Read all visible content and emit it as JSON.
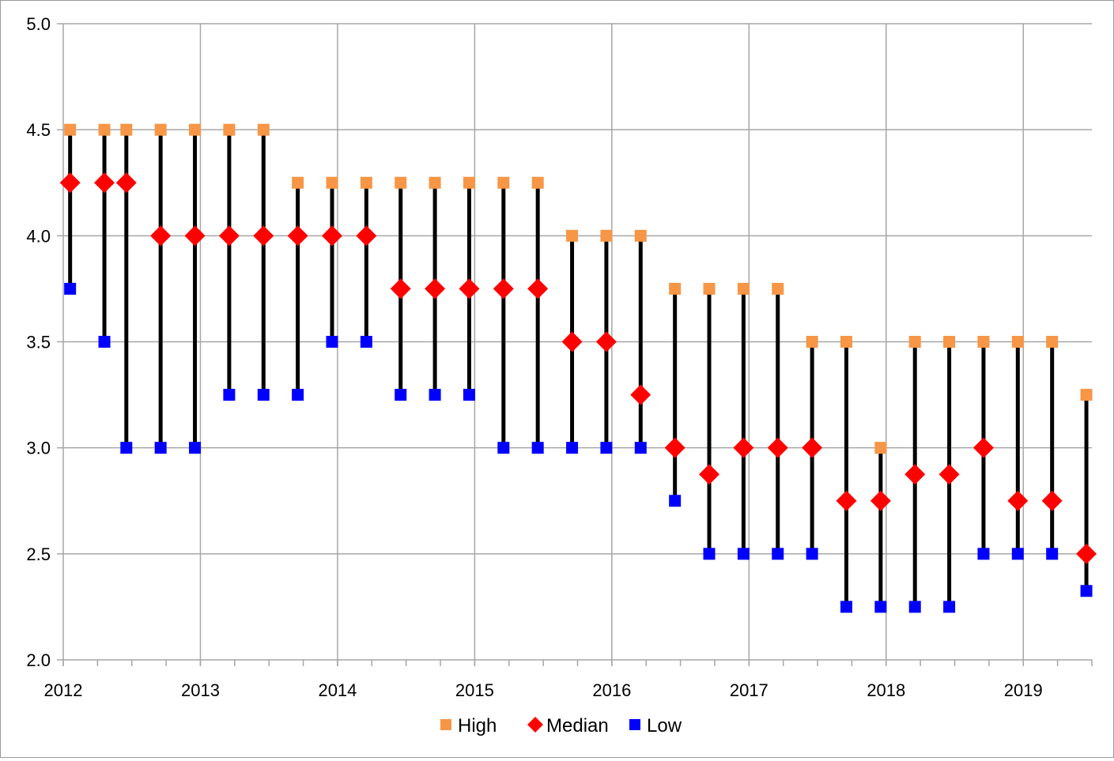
{
  "chart_data": {
    "type": "high-low-median",
    "title": "",
    "xlabel": "",
    "ylabel": "",
    "xlim": [
      2012.0,
      2019.5
    ],
    "ylim": [
      2.0,
      5.0
    ],
    "y_ticks": [
      "2.0",
      "2.5",
      "3.0",
      "3.5",
      "4.0",
      "4.5",
      "5.0"
    ],
    "x_ticks": [
      "2012",
      "2013",
      "2014",
      "2015",
      "2016",
      "2017",
      "2018",
      "2019"
    ],
    "grid": true,
    "legend": {
      "position": "bottom",
      "entries": [
        {
          "name": "High",
          "color": "#f79646",
          "marker": "square"
        },
        {
          "name": "Median",
          "color": "#ff0000",
          "marker": "diamond"
        },
        {
          "name": "Low",
          "color": "#0000ff",
          "marker": "square"
        }
      ]
    },
    "whisker_color": "#000000",
    "points": [
      {
        "x": 2012.05,
        "high": 4.5,
        "median": 4.25,
        "low": 3.75
      },
      {
        "x": 2012.3,
        "high": 4.5,
        "median": 4.25,
        "low": 3.5
      },
      {
        "x": 2012.46,
        "high": 4.5,
        "median": 4.25,
        "low": 3.0
      },
      {
        "x": 2012.71,
        "high": 4.5,
        "median": 4.0,
        "low": 3.0
      },
      {
        "x": 2012.96,
        "high": 4.5,
        "median": 4.0,
        "low": 3.0
      },
      {
        "x": 2013.21,
        "high": 4.5,
        "median": 4.0,
        "low": 3.25
      },
      {
        "x": 2013.46,
        "high": 4.5,
        "median": 4.0,
        "low": 3.25
      },
      {
        "x": 2013.71,
        "high": 4.25,
        "median": 4.0,
        "low": 3.25
      },
      {
        "x": 2013.96,
        "high": 4.25,
        "median": 4.0,
        "low": 3.5
      },
      {
        "x": 2014.21,
        "high": 4.25,
        "median": 4.0,
        "low": 3.5
      },
      {
        "x": 2014.46,
        "high": 4.25,
        "median": 3.75,
        "low": 3.25
      },
      {
        "x": 2014.71,
        "high": 4.25,
        "median": 3.75,
        "low": 3.25
      },
      {
        "x": 2014.96,
        "high": 4.25,
        "median": 3.75,
        "low": 3.25
      },
      {
        "x": 2015.21,
        "high": 4.25,
        "median": 3.75,
        "low": 3.0
      },
      {
        "x": 2015.46,
        "high": 4.25,
        "median": 3.75,
        "low": 3.0
      },
      {
        "x": 2015.71,
        "high": 4.0,
        "median": 3.5,
        "low": 3.0
      },
      {
        "x": 2015.96,
        "high": 4.0,
        "median": 3.5,
        "low": 3.0
      },
      {
        "x": 2016.21,
        "high": 4.0,
        "median": 3.25,
        "low": 3.0
      },
      {
        "x": 2016.46,
        "high": 3.75,
        "median": 3.0,
        "low": 2.75
      },
      {
        "x": 2016.71,
        "high": 3.75,
        "median": 2.875,
        "low": 2.5
      },
      {
        "x": 2016.96,
        "high": 3.75,
        "median": 3.0,
        "low": 2.5
      },
      {
        "x": 2017.21,
        "high": 3.75,
        "median": 3.0,
        "low": 2.5
      },
      {
        "x": 2017.46,
        "high": 3.5,
        "median": 3.0,
        "low": 2.5
      },
      {
        "x": 2017.71,
        "high": 3.5,
        "median": 2.75,
        "low": 2.25
      },
      {
        "x": 2017.96,
        "high": 3.0,
        "median": 2.75,
        "low": 2.25
      },
      {
        "x": 2018.21,
        "high": 3.5,
        "median": 2.875,
        "low": 2.25
      },
      {
        "x": 2018.46,
        "high": 3.5,
        "median": 2.875,
        "low": 2.25
      },
      {
        "x": 2018.71,
        "high": 3.5,
        "median": 3.0,
        "low": 2.5
      },
      {
        "x": 2018.96,
        "high": 3.5,
        "median": 2.75,
        "low": 2.5
      },
      {
        "x": 2019.21,
        "high": 3.5,
        "median": 2.75,
        "low": 2.5
      },
      {
        "x": 2019.46,
        "high": 3.25,
        "median": 2.5,
        "low": 2.325
      }
    ]
  }
}
